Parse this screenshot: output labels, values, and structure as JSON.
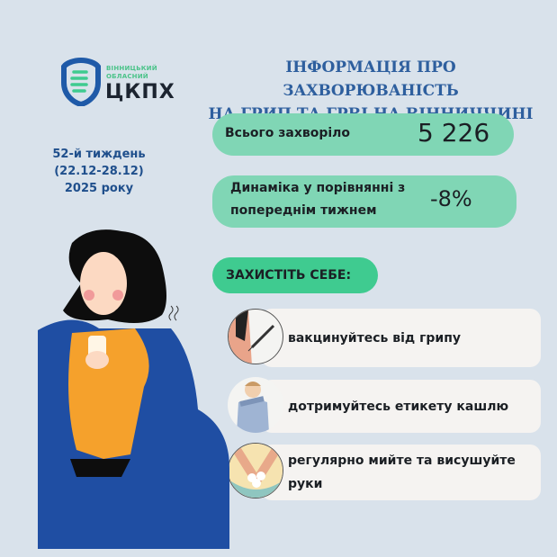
{
  "logo": {
    "line1": "ВІННИЦЬКИЙ",
    "line2": "ОБЛАСНИЙ",
    "name": "ЦКПХ"
  },
  "title": {
    "line1": "ІНФОРМАЦІЯ ПРО ЗАХВОРЮВАНІСТЬ",
    "line2": "НА ГРИП ТА ГРВІ НА ВІННИЧЧИНІ"
  },
  "period": {
    "week": "52-й тиждень",
    "dates": "(22.12-28.12)",
    "year": "2025 року"
  },
  "stats": {
    "total_label": "Всього захворіло",
    "total_value": "5 226",
    "dynamics_label_1": "Динаміка у порівнянні з",
    "dynamics_label_2": "попереднім тижнем",
    "dynamics_value": "-8%"
  },
  "protect": {
    "heading": "ЗАХИСТІТЬ СЕБЕ:",
    "items": [
      {
        "text": "вакцинуйтесь від грипу",
        "icon": "syringe-icon"
      },
      {
        "text": "дотримуйтесь етикету кашлю",
        "icon": "cough-icon"
      },
      {
        "text": "регулярно мийте та висушуйте руки",
        "icon": "handwash-icon"
      }
    ]
  },
  "colors": {
    "background": "#d9e2eb",
    "pill": "#80d6b5",
    "accent": "#3fcb90",
    "title": "#2e5f9e",
    "blanket": "#1f4ea3",
    "sweater": "#f5a12c"
  }
}
